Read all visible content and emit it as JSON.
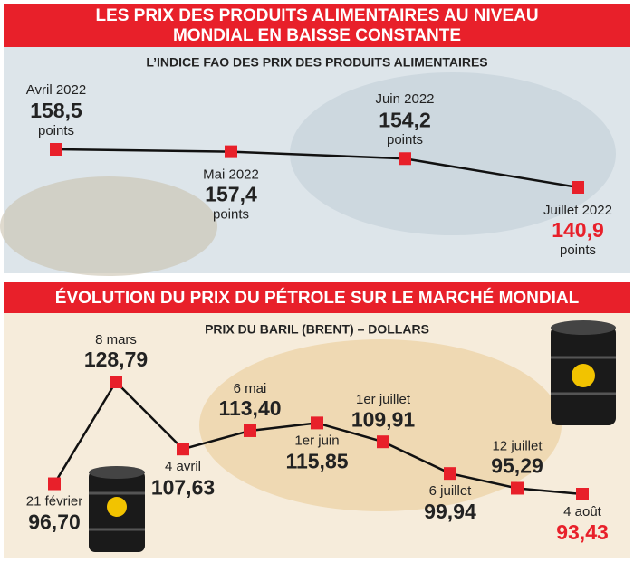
{
  "chart_data": [
    {
      "type": "line",
      "title": "LES PRIX DES PRODUITS ALIMENTAIRES AU NIVEAU MONDIAL EN BAISSE CONSTANTE",
      "subtitle": "L’INDICE FAO DES PRIX DES PRODUITS ALIMENTAIRES",
      "unit": "points",
      "categories": [
        "Avril 2022",
        "Mai 2022",
        "Juin 2022",
        "Juillet 2022"
      ],
      "values": [
        158.5,
        157.4,
        154.2,
        140.9
      ],
      "value_labels": [
        "158,5",
        "157,4",
        "154,2",
        "140,9"
      ],
      "line_color": "#111111",
      "marker_color": "#e8202a",
      "highlight_color": "#e8202a"
    },
    {
      "type": "line",
      "title": "ÉVOLUTION DU PRIX DU PÉTROLE SUR LE MARCHÉ MONDIAL",
      "subtitle": "PRIX DU BARIL (BRENT) – DOLLARS",
      "categories": [
        "21 février",
        "8 mars",
        "4 avril",
        "6 mai",
        "1er juin",
        "1er juillet",
        "6 juillet",
        "12 juillet",
        "4 août"
      ],
      "values": [
        96.7,
        128.79,
        107.63,
        113.4,
        115.85,
        109.91,
        99.94,
        95.29,
        93.43
      ],
      "value_labels": [
        "96,70",
        "128,79",
        "107,63",
        "113,40",
        "115,85",
        "109,91",
        "99,94",
        "95,29",
        "93,43"
      ],
      "line_color": "#111111",
      "marker_color": "#e8202a",
      "highlight_color": "#e8202a"
    }
  ]
}
